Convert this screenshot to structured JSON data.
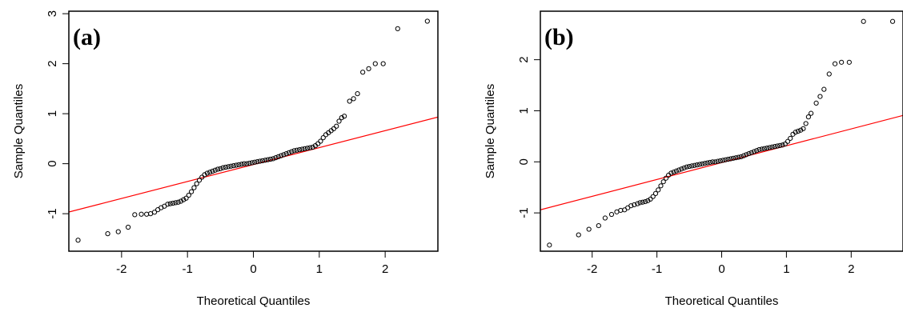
{
  "chart_data": [
    {
      "type": "scatter",
      "panel_label": "(a)",
      "xlabel": "Theoretical Quantiles",
      "ylabel": "Sample Quantiles",
      "xlim": [
        -2.8,
        2.8
      ],
      "ylim": [
        -1.75,
        3.05
      ],
      "xticks": [
        -2,
        -1,
        0,
        1,
        2
      ],
      "xtick_labels": [
        "-2",
        "-1",
        "0",
        "1",
        "2"
      ],
      "yticks": [
        -1,
        0,
        1,
        2,
        3
      ],
      "ytick_labels": [
        "-1",
        "0",
        "1",
        "2",
        "3"
      ],
      "grid": false,
      "reference_line": {
        "color": "#ff0000",
        "slope": 0.339,
        "intercept": -0.017
      },
      "x_values": [
        -2.66,
        -2.21,
        -2.05,
        -1.9,
        -1.8,
        -1.7,
        -1.62,
        -1.56,
        -1.5,
        -1.45,
        -1.4,
        -1.35,
        -1.3,
        -1.26,
        -1.22,
        -1.18,
        -1.14,
        -1.1,
        -1.06,
        -1.02,
        -0.98,
        -0.94,
        -0.9,
        -0.86,
        -0.82,
        -0.78,
        -0.74,
        -0.7,
        -0.66,
        -0.62,
        -0.58,
        -0.54,
        -0.5,
        -0.46,
        -0.42,
        -0.38,
        -0.34,
        -0.3,
        -0.26,
        -0.22,
        -0.18,
        -0.14,
        -0.1,
        -0.06,
        -0.02,
        0.02,
        0.06,
        0.1,
        0.14,
        0.18,
        0.22,
        0.26,
        0.3,
        0.34,
        0.38,
        0.42,
        0.46,
        0.5,
        0.54,
        0.58,
        0.62,
        0.66,
        0.7,
        0.74,
        0.78,
        0.82,
        0.86,
        0.9,
        0.94,
        0.98,
        1.02,
        1.06,
        1.1,
        1.14,
        1.18,
        1.22,
        1.26,
        1.3,
        1.34,
        1.38,
        1.46,
        1.52,
        1.58,
        1.66,
        1.75,
        1.85,
        1.97,
        2.19,
        2.64
      ],
      "y_values": [
        -1.53,
        -1.4,
        -1.36,
        -1.27,
        -1.02,
        -1.01,
        -1.01,
        -1.0,
        -0.97,
        -0.92,
        -0.88,
        -0.85,
        -0.81,
        -0.8,
        -0.79,
        -0.78,
        -0.77,
        -0.75,
        -0.72,
        -0.69,
        -0.63,
        -0.56,
        -0.48,
        -0.4,
        -0.33,
        -0.27,
        -0.22,
        -0.19,
        -0.17,
        -0.15,
        -0.13,
        -0.11,
        -0.1,
        -0.08,
        -0.07,
        -0.06,
        -0.05,
        -0.04,
        -0.03,
        -0.02,
        -0.01,
        0.0,
        0.0,
        0.01,
        0.02,
        0.03,
        0.04,
        0.05,
        0.06,
        0.07,
        0.08,
        0.09,
        0.1,
        0.12,
        0.14,
        0.16,
        0.18,
        0.2,
        0.22,
        0.24,
        0.26,
        0.27,
        0.28,
        0.29,
        0.3,
        0.31,
        0.32,
        0.33,
        0.36,
        0.4,
        0.45,
        0.52,
        0.58,
        0.62,
        0.66,
        0.7,
        0.75,
        0.85,
        0.92,
        0.95,
        1.25,
        1.3,
        1.4,
        1.83,
        1.9,
        2.0,
        2.0,
        2.7,
        2.85
      ]
    },
    {
      "type": "scatter",
      "panel_label": "(b)",
      "xlabel": "Theoretical Quantiles",
      "ylabel": "Sample Quantiles",
      "xlim": [
        -2.8,
        2.8
      ],
      "ylim": [
        -1.75,
        2.95
      ],
      "xticks": [
        -2,
        -1,
        0,
        1,
        2
      ],
      "xtick_labels": [
        "-2",
        "-1",
        "0",
        "1",
        "2"
      ],
      "yticks": [
        -1,
        0,
        1,
        2
      ],
      "ytick_labels": [
        "-1",
        "0",
        "1",
        "2"
      ],
      "grid": false,
      "reference_line": {
        "color": "#ff0000",
        "slope": 0.33,
        "intercept": -0.015
      },
      "x_values": [
        -2.66,
        -2.21,
        -2.05,
        -1.9,
        -1.8,
        -1.7,
        -1.62,
        -1.56,
        -1.5,
        -1.45,
        -1.4,
        -1.35,
        -1.3,
        -1.26,
        -1.22,
        -1.18,
        -1.14,
        -1.1,
        -1.06,
        -1.02,
        -0.98,
        -0.94,
        -0.9,
        -0.86,
        -0.82,
        -0.78,
        -0.74,
        -0.7,
        -0.66,
        -0.62,
        -0.58,
        -0.54,
        -0.5,
        -0.46,
        -0.42,
        -0.38,
        -0.34,
        -0.3,
        -0.26,
        -0.22,
        -0.18,
        -0.14,
        -0.1,
        -0.06,
        -0.02,
        0.02,
        0.06,
        0.1,
        0.14,
        0.18,
        0.22,
        0.26,
        0.3,
        0.34,
        0.38,
        0.42,
        0.46,
        0.5,
        0.54,
        0.58,
        0.62,
        0.66,
        0.7,
        0.74,
        0.78,
        0.82,
        0.86,
        0.9,
        0.94,
        0.98,
        1.02,
        1.06,
        1.1,
        1.14,
        1.18,
        1.22,
        1.26,
        1.3,
        1.34,
        1.38,
        1.46,
        1.52,
        1.58,
        1.66,
        1.75,
        1.85,
        1.97,
        2.19,
        2.64
      ],
      "y_values": [
        -1.63,
        -1.43,
        -1.32,
        -1.25,
        -1.1,
        -1.03,
        -0.98,
        -0.95,
        -0.94,
        -0.9,
        -0.86,
        -0.84,
        -0.82,
        -0.8,
        -0.79,
        -0.78,
        -0.76,
        -0.73,
        -0.68,
        -0.62,
        -0.55,
        -0.47,
        -0.39,
        -0.32,
        -0.26,
        -0.22,
        -0.2,
        -0.18,
        -0.16,
        -0.14,
        -0.12,
        -0.1,
        -0.09,
        -0.08,
        -0.07,
        -0.06,
        -0.05,
        -0.04,
        -0.03,
        -0.02,
        -0.01,
        0.0,
        0.0,
        0.01,
        0.02,
        0.03,
        0.04,
        0.05,
        0.06,
        0.07,
        0.08,
        0.09,
        0.1,
        0.12,
        0.14,
        0.16,
        0.18,
        0.2,
        0.22,
        0.24,
        0.25,
        0.26,
        0.27,
        0.28,
        0.29,
        0.3,
        0.31,
        0.32,
        0.33,
        0.35,
        0.4,
        0.46,
        0.54,
        0.58,
        0.6,
        0.62,
        0.65,
        0.75,
        0.88,
        0.95,
        1.15,
        1.28,
        1.42,
        1.72,
        1.92,
        1.95,
        1.95,
        2.75,
        2.75
      ]
    }
  ]
}
